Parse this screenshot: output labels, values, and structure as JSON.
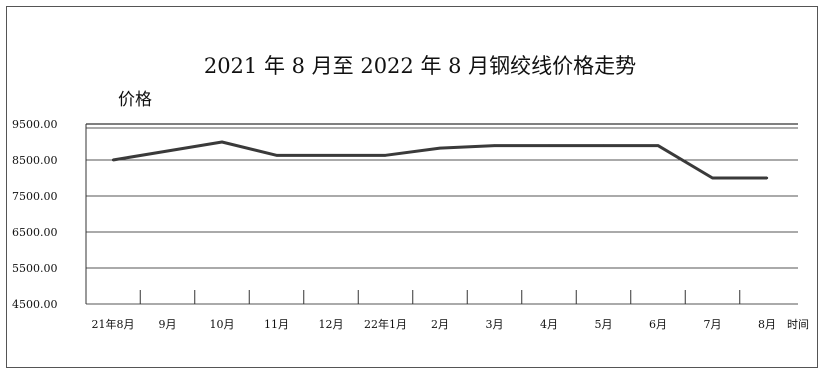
{
  "chart_data": {
    "type": "line",
    "title": "2021 年 8 月至 2022 年 8 月钢绞线价格走势",
    "ylabel": "价格",
    "xlabel": "时间",
    "ylim": [
      4500,
      9500
    ],
    "yticks": [
      "9500.00",
      "8500.00",
      "7500.00",
      "6500.00",
      "5500.00",
      "4500.00"
    ],
    "ytick_values": [
      9500,
      8500,
      7500,
      6500,
      5500,
      4500
    ],
    "categories": [
      "21年8月",
      "9月",
      "10月",
      "11月",
      "12月",
      "22年1月",
      "2月",
      "3月",
      "4月",
      "5月",
      "6月",
      "7月",
      "8月"
    ],
    "series": [
      {
        "values": [
          8500,
          8750,
          9000,
          8630,
          8630,
          8630,
          8830,
          8900,
          8900,
          8900,
          8900,
          8000,
          8000
        ]
      }
    ],
    "grid": true,
    "colors": {
      "line": "#3a3a3a",
      "grid": "#555555",
      "axis": "#333333"
    }
  }
}
